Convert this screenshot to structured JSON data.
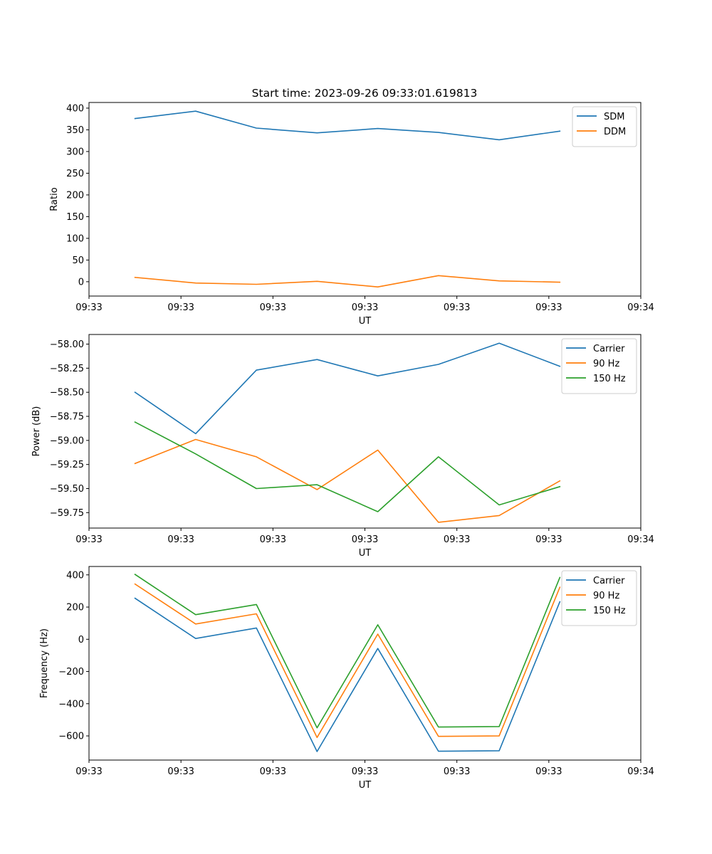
{
  "figure_title": "Start time: 2023-09-26 09:33:01.619813",
  "chart_data": [
    {
      "type": "line",
      "title": "Start time: 2023-09-26 09:33:01.619813",
      "xlabel": "UT",
      "ylabel": "Ratio",
      "xlim": [
        0,
        9
      ],
      "ylim": [
        -33,
        413
      ],
      "x_ticks": [
        {
          "value": 0,
          "label": "09:33"
        },
        {
          "value": 1.5,
          "label": "09:33"
        },
        {
          "value": 3,
          "label": "09:33"
        },
        {
          "value": 4.5,
          "label": "09:33"
        },
        {
          "value": 6,
          "label": "09:33"
        },
        {
          "value": 7.5,
          "label": "09:33"
        },
        {
          "value": 9,
          "label": "09:34"
        }
      ],
      "y_ticks": [
        0,
        50,
        100,
        150,
        200,
        250,
        300,
        350,
        400
      ],
      "y_tick_labels": [
        "0",
        "50",
        "100",
        "150",
        "200",
        "250",
        "300",
        "350",
        "400"
      ],
      "x": [
        0.75,
        1.74,
        2.73,
        3.72,
        4.71,
        5.7,
        6.69,
        7.68
      ],
      "series": [
        {
          "name": "SDM",
          "color": "#1f77b4",
          "values": [
            376,
            393,
            354,
            343,
            353,
            344,
            327,
            347
          ]
        },
        {
          "name": "DDM",
          "color": "#ff7f0e",
          "values": [
            10,
            -3,
            -6,
            1,
            -12,
            14,
            2,
            -1
          ]
        }
      ],
      "legend": "top-right",
      "grid": false
    },
    {
      "type": "line",
      "title": "",
      "xlabel": "UT",
      "ylabel": "Power (dB)",
      "xlim": [
        0,
        9
      ],
      "ylim": [
        -59.91,
        -57.9
      ],
      "x_ticks": [
        {
          "value": 0,
          "label": "09:33"
        },
        {
          "value": 1.5,
          "label": "09:33"
        },
        {
          "value": 3,
          "label": "09:33"
        },
        {
          "value": 4.5,
          "label": "09:33"
        },
        {
          "value": 6,
          "label": "09:33"
        },
        {
          "value": 7.5,
          "label": "09:33"
        },
        {
          "value": 9,
          "label": "09:34"
        }
      ],
      "y_ticks": [
        -59.75,
        -59.5,
        -59.25,
        -59.0,
        -58.75,
        -58.5,
        -58.25,
        -58.0
      ],
      "y_tick_labels": [
        "−59.75",
        "−59.50",
        "−59.25",
        "−59.00",
        "−58.75",
        "−58.50",
        "−58.25",
        "−58.00"
      ],
      "x": [
        0.75,
        1.74,
        2.73,
        3.72,
        4.71,
        5.7,
        6.69,
        7.68
      ],
      "series": [
        {
          "name": "Carrier",
          "color": "#1f77b4",
          "values": [
            -58.5,
            -58.93,
            -58.27,
            -58.16,
            -58.33,
            -58.21,
            -57.99,
            -58.23
          ]
        },
        {
          "name": "90 Hz",
          "color": "#ff7f0e",
          "values": [
            -59.24,
            -58.99,
            -59.17,
            -59.51,
            -59.1,
            -59.85,
            -59.78,
            -59.42
          ]
        },
        {
          "name": "150 Hz",
          "color": "#2ca02c",
          "values": [
            -58.81,
            -59.14,
            -59.5,
            -59.46,
            -59.74,
            -59.17,
            -59.67,
            -59.48
          ]
        }
      ],
      "legend": "top-right",
      "grid": false
    },
    {
      "type": "line",
      "title": "",
      "xlabel": "UT",
      "ylabel": "Frequency (Hz)",
      "xlim": [
        0,
        9
      ],
      "ylim": [
        -750,
        452
      ],
      "x_ticks": [
        {
          "value": 0,
          "label": "09:33"
        },
        {
          "value": 1.5,
          "label": "09:33"
        },
        {
          "value": 3,
          "label": "09:33"
        },
        {
          "value": 4.5,
          "label": "09:33"
        },
        {
          "value": 6,
          "label": "09:33"
        },
        {
          "value": 7.5,
          "label": "09:33"
        },
        {
          "value": 9,
          "label": "09:34"
        }
      ],
      "y_ticks": [
        -600,
        -400,
        -200,
        0,
        200,
        400
      ],
      "y_tick_labels": [
        "−600",
        "−400",
        "−200",
        "0",
        "200",
        "400"
      ],
      "x": [
        0.75,
        1.74,
        2.73,
        3.72,
        4.71,
        5.7,
        6.69,
        7.68
      ],
      "series": [
        {
          "name": "Carrier",
          "color": "#1f77b4",
          "values": [
            255,
            5,
            70,
            -697,
            -57,
            -695,
            -692,
            233
          ]
        },
        {
          "name": "90 Hz",
          "color": "#ff7f0e",
          "values": [
            343,
            95,
            158,
            -610,
            32,
            -603,
            -600,
            323
          ]
        },
        {
          "name": "150 Hz",
          "color": "#2ca02c",
          "values": [
            403,
            153,
            216,
            -550,
            90,
            -545,
            -542,
            384
          ]
        }
      ],
      "legend": "top-right",
      "grid": false
    }
  ]
}
